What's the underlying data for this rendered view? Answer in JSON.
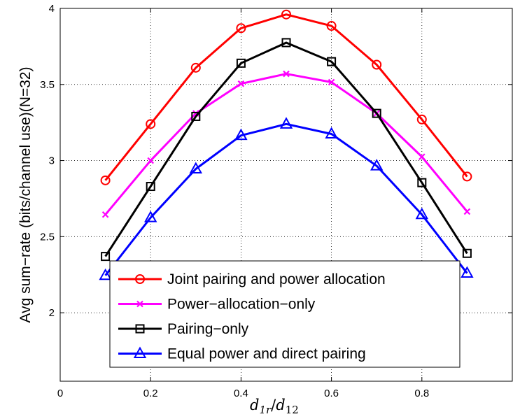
{
  "chart_data": {
    "type": "line",
    "x": [
      0.1,
      0.2,
      0.3,
      0.4,
      0.5,
      0.6,
      0.7,
      0.8,
      0.9
    ],
    "xlim": [
      0,
      1
    ],
    "ylim": [
      1.55,
      4
    ],
    "xticks": [
      "0",
      "0.2",
      "0.4",
      "0.6",
      "0.8"
    ],
    "xtick_values": [
      0,
      0.2,
      0.4,
      0.6,
      0.8
    ],
    "yticks": [
      "2",
      "2.5",
      "3",
      "3.5",
      "4"
    ],
    "ytick_values": [
      2,
      2.5,
      3,
      3.5,
      4
    ],
    "ylabel": "Avg sum−rate (bits/channel use)(N=32)",
    "xlabel": {
      "base": "d",
      "sub1": "1r",
      "sep": "/",
      "base2": "d",
      "sub2": "12"
    },
    "grid": true,
    "legend_position": "bottom-center",
    "series": [
      {
        "name": "Joint pairing and power allocation",
        "color": "#ff0000",
        "marker": "circle",
        "values": [
          2.87,
          3.24,
          3.61,
          3.87,
          3.96,
          3.885,
          3.63,
          3.27,
          2.895
        ]
      },
      {
        "name": "Power−allocation−only",
        "color": "#ff00ff",
        "marker": "x",
        "values": [
          2.645,
          3.0,
          3.31,
          3.505,
          3.57,
          3.515,
          3.31,
          3.025,
          2.665
        ]
      },
      {
        "name": "Pairing−only",
        "color": "#000000",
        "marker": "square",
        "values": [
          2.37,
          2.83,
          3.29,
          3.64,
          3.775,
          3.65,
          3.31,
          2.855,
          2.39
        ]
      },
      {
        "name": "Equal power and direct pairing",
        "color": "#0000ff",
        "marker": "triangle",
        "values": [
          2.245,
          2.625,
          2.945,
          3.165,
          3.24,
          3.175,
          2.965,
          2.645,
          2.26
        ]
      }
    ]
  }
}
